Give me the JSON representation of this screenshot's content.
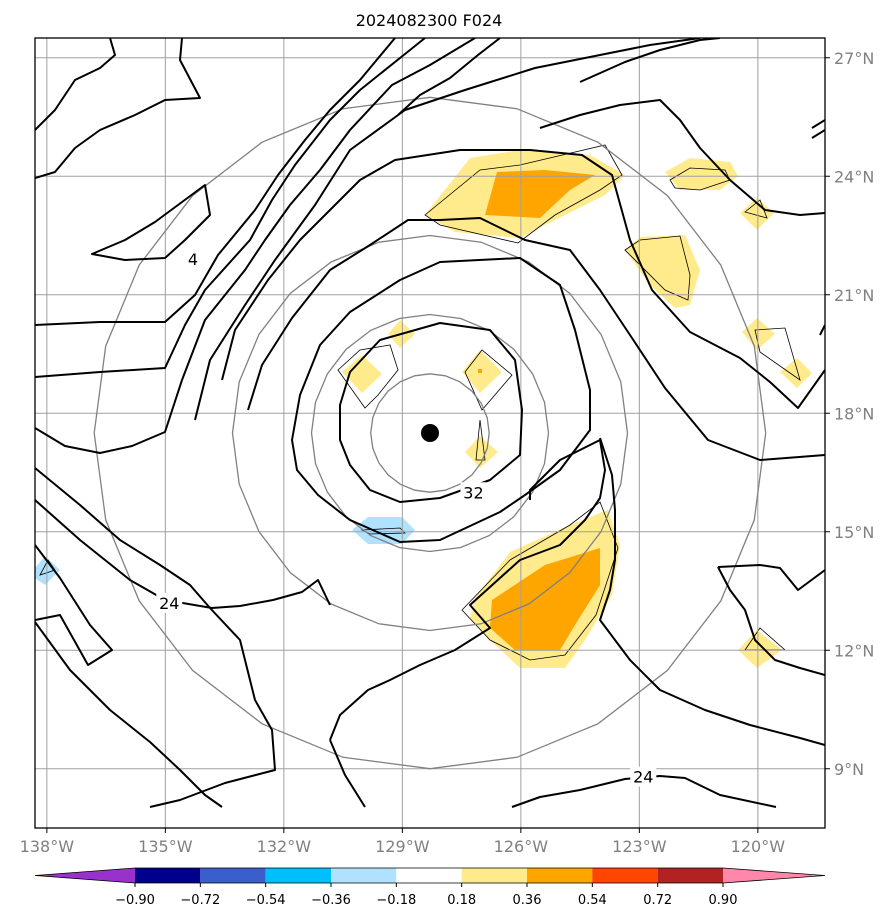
{
  "title": "2024082300 F024",
  "colors": {
    "grid": "#a0a0a0",
    "range_rings": "#808080",
    "contour": "#000000",
    "center_marker": "#000000"
  },
  "chart_data": {
    "type": "map",
    "projection": "lat-lon",
    "lon_range": [
      -138.3,
      -118.3
    ],
    "lat_range": [
      7.5,
      27.5
    ],
    "lon_ticks": [
      "138°W",
      "135°W",
      "132°W",
      "129°W",
      "126°W",
      "123°W",
      "120°W"
    ],
    "lat_ticks": [
      "9°N",
      "12°N",
      "15°N",
      "18°N",
      "21°N",
      "24°N",
      "27°N"
    ],
    "grid": true,
    "storm_center": {
      "lon": -128.3,
      "lat": 17.5
    },
    "range_rings_deg": [
      1.5,
      3.0,
      5.0,
      8.5
    ],
    "contour_labels": [
      {
        "text": "4",
        "lon": -134.3,
        "lat": 21.9
      },
      {
        "text": "32",
        "lon": -127.2,
        "lat": 16.0
      },
      {
        "text": "24",
        "lon": -134.9,
        "lat": 13.2
      },
      {
        "text": "24",
        "lon": -122.9,
        "lat": 8.8
      }
    ],
    "colorbar": {
      "ticks": [
        "−0.90",
        "−0.72",
        "−0.54",
        "−0.36",
        "−0.18",
        "0.18",
        "0.36",
        "0.54",
        "0.72",
        "0.90"
      ],
      "colors": [
        "#9932cc",
        "#00008b",
        "#3a5fcd",
        "#00bfff",
        "#b0e2ff",
        "#ffffff",
        "#ffeb8c",
        "#ffa500",
        "#ff4500",
        "#b22222",
        "#ff88aa"
      ],
      "extend": "both"
    }
  }
}
